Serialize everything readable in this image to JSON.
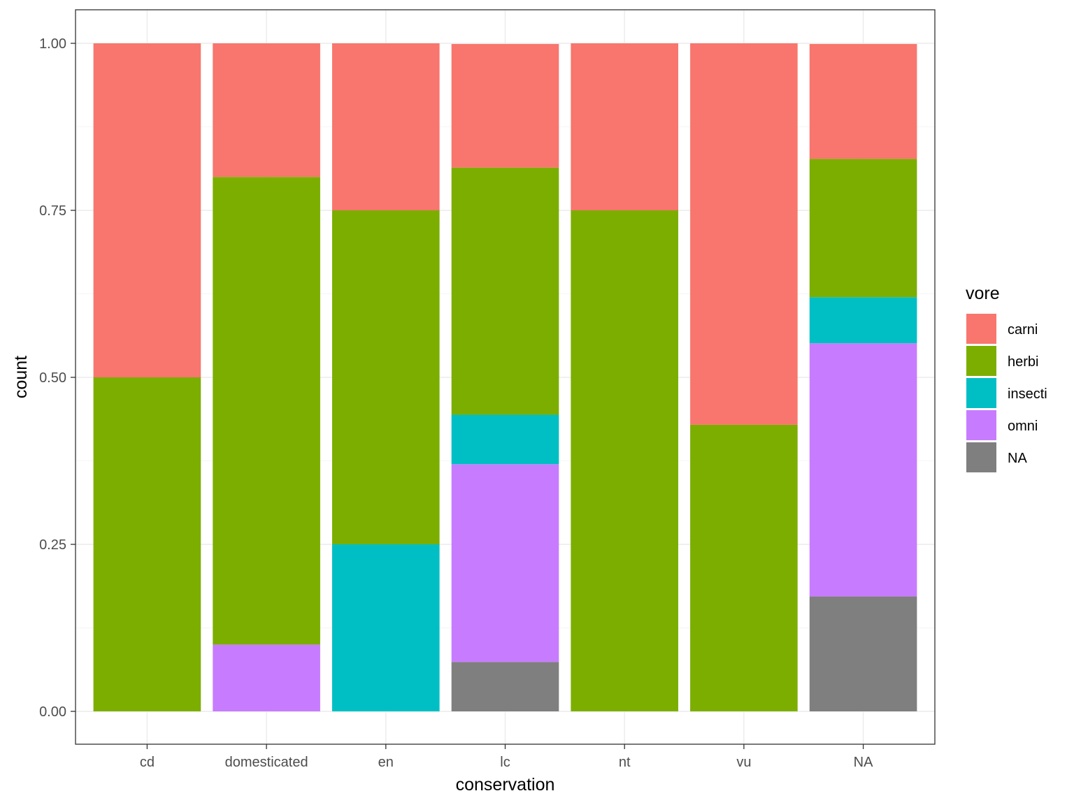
{
  "chart_data": {
    "type": "bar",
    "stacked": true,
    "position": "fill",
    "xlabel": "conservation",
    "ylabel": "count",
    "ylim": [
      0,
      1
    ],
    "yticks": [
      0,
      0.25,
      0.5,
      0.75,
      1
    ],
    "ytick_labels": [
      "0.00",
      "0.25",
      "0.50",
      "0.75",
      "1.00"
    ],
    "categories": [
      "cd",
      "domesticated",
      "en",
      "lc",
      "nt",
      "vu",
      "NA"
    ],
    "legend": {
      "title": "vore",
      "placement": "right"
    },
    "grid": true,
    "series": [
      {
        "name": "carni",
        "color": "#F8766D",
        "values": [
          0.5,
          0.2,
          0.25,
          0.185,
          0.25,
          0.571,
          0.172
        ]
      },
      {
        "name": "herbi",
        "color": "#7CAE00",
        "values": [
          0.5,
          0.7,
          0.5,
          0.37,
          0.75,
          0.429,
          0.207
        ]
      },
      {
        "name": "insecti",
        "color": "#00BFC4",
        "values": [
          0,
          0,
          0.25,
          0.074,
          0,
          0,
          0.069
        ]
      },
      {
        "name": "omni",
        "color": "#C77CFF",
        "values": [
          0,
          0.1,
          0,
          0.296,
          0,
          0,
          0.379
        ]
      },
      {
        "name": "NA",
        "color": "#7F7F7F",
        "values": [
          0,
          0,
          0,
          0.074,
          0,
          0,
          0.172
        ]
      }
    ]
  }
}
